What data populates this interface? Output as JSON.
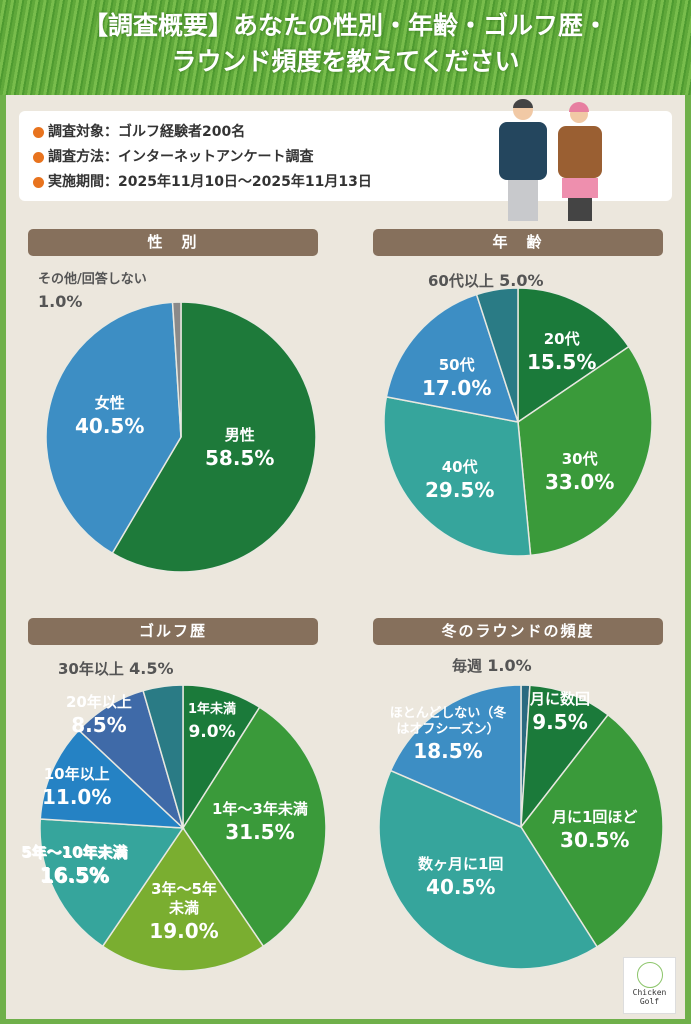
{
  "title": {
    "line1": "【調査概要】あなたの性別・年齢・ゴルフ歴・",
    "line2": "ラウンド頻度を教えてください"
  },
  "info": [
    "調査対象：ゴルフ経験者200名",
    "調査方法：インターネットアンケート調査",
    "実施期間：2025年11月10日〜2025年11月13日"
  ],
  "logo": {
    "line1": "Chicken",
    "line2": "Golf"
  },
  "colors": {
    "accent": "#e8731e",
    "section": "#86705c"
  },
  "chart_data": [
    {
      "type": "pie",
      "title": "性　別",
      "categories": [
        "男性",
        "女性",
        "その他/回答しない"
      ],
      "values": [
        58.5,
        40.5,
        1.0
      ],
      "colors": [
        "#1e7a3a",
        "#3d8ec4",
        "#8a8a8a"
      ],
      "labels": [
        "58.5%",
        "40.5%",
        "1.0%"
      ]
    },
    {
      "type": "pie",
      "title": "年　齢",
      "categories": [
        "20代",
        "30代",
        "40代",
        "50代",
        "60代以上"
      ],
      "values": [
        15.5,
        33.0,
        29.5,
        17.0,
        5.0
      ],
      "colors": [
        "#1b7a3a",
        "#3a9a3a",
        "#36a59c",
        "#3d8ec4",
        "#2a7b85"
      ],
      "labels": [
        "15.5%",
        "33.0%",
        "29.5%",
        "17.0%",
        "5.0%"
      ]
    },
    {
      "type": "pie",
      "title": "ゴルフ歴",
      "categories": [
        "1年未満",
        "1年〜3年未満",
        "3年〜5年未満",
        "5年〜10年未満",
        "10年以上",
        "20年以上",
        "30年以上"
      ],
      "values": [
        9.0,
        31.5,
        19.0,
        16.5,
        11.0,
        8.5,
        4.5
      ],
      "colors": [
        "#1b7a3a",
        "#3a9a3a",
        "#7aae30",
        "#36a59c",
        "#2582c4",
        "#3f6aa8",
        "#2a7b85"
      ],
      "labels": [
        "9.0%",
        "31.5%",
        "19.0%",
        "16.5%",
        "11.0%",
        "8.5%",
        "4.5%"
      ]
    },
    {
      "type": "pie",
      "title": "冬のラウンドの頻度",
      "categories": [
        "毎週",
        "月に数回",
        "月に1回ほど",
        "数ヶ月に1回",
        "ほとんどしない（冬はオフシーズン）"
      ],
      "values": [
        1.0,
        9.5,
        30.5,
        40.5,
        18.5
      ],
      "colors": [
        "#2a6a80",
        "#1b7a3a",
        "#3a9a3a",
        "#36a59c",
        "#3d8ec4"
      ],
      "labels": [
        "1.0%",
        "9.5%",
        "30.5%",
        "40.5%",
        "18.5%"
      ]
    }
  ]
}
